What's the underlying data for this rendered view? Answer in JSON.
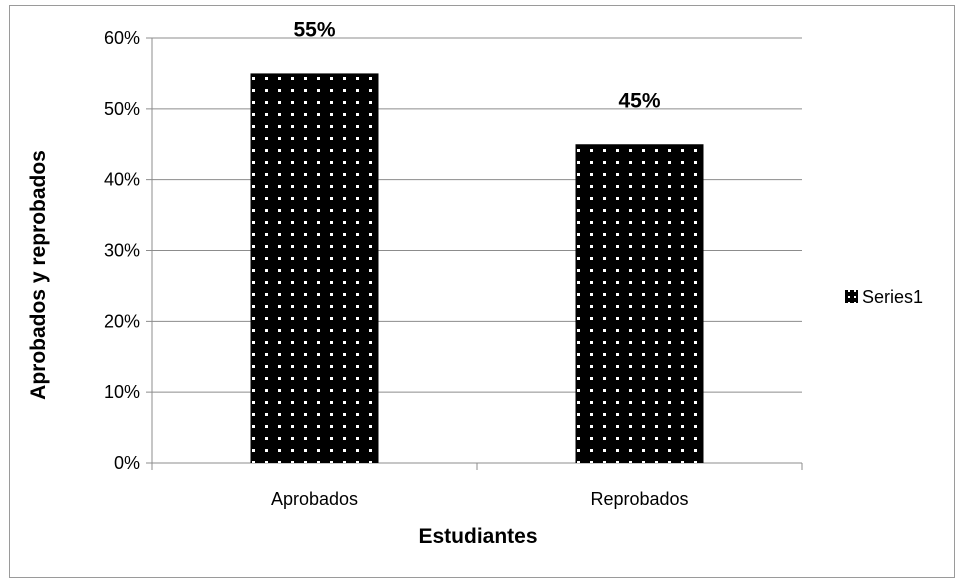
{
  "chart_data": {
    "type": "bar",
    "categories": [
      "Aprobados",
      "Reprobados"
    ],
    "series": [
      {
        "name": "Series1",
        "values": [
          0.55,
          0.45
        ],
        "color": "#000000"
      }
    ],
    "data_labels": [
      "55%",
      "45%"
    ],
    "xlabel": "Estudiantes",
    "ylabel": "Aprobados y reprobados",
    "ylim": [
      0,
      0.6
    ],
    "yticks": [
      0,
      0.1,
      0.2,
      0.3,
      0.4,
      0.5,
      0.6
    ],
    "ytick_labels": [
      "0%",
      "10%",
      "20%",
      "30%",
      "40%",
      "50%",
      "60%"
    ],
    "grid": true,
    "legend_position": "right",
    "bar_pattern": "dotted"
  }
}
